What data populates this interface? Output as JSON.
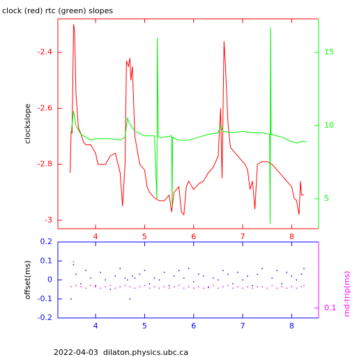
{
  "chart_data": [
    {
      "type": "line",
      "title": "clock (red) rtc (green) slopes",
      "y_label": "clockslope",
      "xlim": [
        3.23,
        8.55
      ],
      "xticks": [
        4,
        5,
        6,
        7,
        8
      ],
      "x_axis_color": "#ff0000",
      "ylim": [
        -3.03,
        -2.28
      ],
      "yticks": [
        -3,
        -2.8,
        -2.6,
        -2.4
      ],
      "y_axis_color": "#ff0000",
      "y2lim": [
        2.95,
        17.29
      ],
      "y2ticks": [
        5,
        10,
        15
      ],
      "y2_axis_color": "#00ff00",
      "series": [
        {
          "color": "#ff0000",
          "x": [
            3.48,
            3.5,
            3.52,
            3.55,
            3.57,
            3.6,
            3.65,
            3.7,
            3.75,
            3.8,
            3.9,
            4.0,
            4.05,
            4.2,
            4.3,
            4.4,
            4.5,
            4.55,
            4.6,
            4.63,
            4.67,
            4.7,
            4.72,
            4.75,
            4.8,
            4.9,
            5.0,
            5.05,
            5.1,
            5.2,
            5.3,
            5.4,
            5.5,
            5.55,
            5.6,
            5.7,
            5.75,
            5.8,
            5.85,
            5.9,
            6.0,
            6.1,
            6.2,
            6.3,
            6.4,
            6.5,
            6.55,
            6.58,
            6.62,
            6.65,
            6.7,
            6.75,
            6.8,
            6.9,
            7.0,
            7.05,
            7.1,
            7.15,
            7.2,
            7.25,
            7.3,
            7.4,
            7.5,
            7.6,
            7.7,
            7.8,
            7.9,
            8.0,
            8.05,
            8.1,
            8.15,
            8.18,
            8.2,
            8.25
          ],
          "values": [
            -2.83,
            -2.68,
            -2.69,
            -2.3,
            -2.32,
            -2.55,
            -2.67,
            -2.69,
            -2.72,
            -2.73,
            -2.73,
            -2.76,
            -2.8,
            -2.8,
            -2.77,
            -2.76,
            -2.83,
            -2.95,
            -2.8,
            -2.43,
            -2.45,
            -2.42,
            -2.5,
            -2.45,
            -2.7,
            -2.8,
            -2.82,
            -2.88,
            -2.9,
            -2.92,
            -2.93,
            -2.93,
            -2.91,
            -2.97,
            -2.9,
            -2.88,
            -2.97,
            -2.98,
            -2.88,
            -2.86,
            -2.89,
            -2.87,
            -2.86,
            -2.83,
            -2.81,
            -2.77,
            -2.6,
            -2.85,
            -2.36,
            -2.45,
            -2.65,
            -2.74,
            -2.75,
            -2.77,
            -2.79,
            -2.8,
            -2.82,
            -2.89,
            -2.86,
            -2.96,
            -2.8,
            -2.79,
            -2.79,
            -2.8,
            -2.82,
            -2.84,
            -2.86,
            -2.88,
            -2.92,
            -2.93,
            -2.98,
            -2.86,
            -2.91,
            -2.91
          ]
        },
        {
          "color": "#00ee00",
          "axis": "y2",
          "x": [
            3.5,
            3.55,
            3.6,
            3.7,
            3.8,
            3.9,
            4.0,
            4.3,
            4.5,
            4.6,
            4.65,
            4.7,
            4.8,
            5.0,
            5.2,
            5.25,
            5.26,
            5.28,
            5.4,
            5.55,
            5.56,
            5.57,
            5.7,
            5.9,
            6.1,
            6.3,
            6.5,
            6.55,
            6.6,
            6.8,
            7.0,
            7.2,
            7.4,
            7.55,
            7.56,
            7.57,
            7.58,
            7.8,
            8.0,
            8.1,
            8.2,
            8.3
          ],
          "values": [
            9.5,
            11,
            10,
            9.4,
            9.2,
            9.0,
            9.1,
            9.1,
            9.0,
            9.2,
            10.5,
            10.1,
            9.6,
            9.3,
            9.3,
            5,
            16,
            9.2,
            9.2,
            9.3,
            4.5,
            9.2,
            9.0,
            9.0,
            9.2,
            9.4,
            9.5,
            10,
            9.6,
            9.5,
            9.6,
            9.5,
            9.5,
            9.4,
            3.3,
            16.7,
            9.4,
            9.2,
            8.9,
            8.8,
            8.9,
            8.9
          ]
        }
      ]
    },
    {
      "type": "scatter",
      "y_label": "offset(ms)",
      "y2_label": "rnd-trip(ms)",
      "xlim": [
        3.23,
        8.55
      ],
      "xticks": [
        4,
        5,
        6,
        7,
        8
      ],
      "x_axis_color": "#0000ff",
      "ylim": [
        -0.2,
        0.2
      ],
      "yticks": [
        -0.2,
        -0.1,
        0,
        0.1,
        0.2
      ],
      "y_axis_color": "#0000ff",
      "y2lim": [
        0.071,
        1
      ],
      "y2ticks": [
        0.1
      ],
      "y2scale": "log",
      "y2_axis_color": "#ff00ff",
      "series": [
        {
          "color": "#0000ff",
          "x": [
            3.5,
            3.55,
            3.6,
            3.7,
            3.8,
            3.9,
            4.0,
            4.1,
            4.2,
            4.3,
            4.4,
            4.5,
            4.6,
            4.65,
            4.7,
            4.75,
            4.8,
            4.9,
            5.0,
            5.1,
            5.2,
            5.3,
            5.4,
            5.5,
            5.6,
            5.7,
            5.8,
            5.9,
            6.0,
            6.1,
            6.2,
            6.3,
            6.4,
            6.5,
            6.6,
            6.7,
            6.8,
            6.9,
            7.0,
            7.1,
            7.2,
            7.3,
            7.4,
            7.6,
            7.7,
            7.8,
            7.9,
            8.0,
            8.1,
            8.2,
            8.25
          ],
          "values": [
            -0.1,
            0.08,
            0.03,
            -0.02,
            0.05,
            0.01,
            -0.03,
            0.04,
            0.0,
            -0.05,
            0.02,
            0.06,
            0.01,
            0.0,
            -0.1,
            0.02,
            0.01,
            0.03,
            0.05,
            -0.02,
            0.01,
            0.0,
            0.04,
            -0.03,
            0.02,
            0.05,
            0.01,
            0.06,
            -0.01,
            0.03,
            0.02,
            -0.04,
            0.01,
            0.0,
            0.05,
            0.03,
            -0.02,
            0.04,
            0.0,
            0.02,
            -0.03,
            0.03,
            0.06,
            0.01,
            0.05,
            -0.02,
            0.04,
            0.02,
            0.0,
            0.03,
            0.06
          ]
        },
        {
          "color": "#ff00ff",
          "axis": "y2",
          "x": [
            3.5,
            3.55,
            3.6,
            3.7,
            3.8,
            3.9,
            4.0,
            4.1,
            4.2,
            4.3,
            4.4,
            4.5,
            4.6,
            4.7,
            4.8,
            4.9,
            5.0,
            5.1,
            5.2,
            5.3,
            5.4,
            5.5,
            5.6,
            5.7,
            5.8,
            5.9,
            6.0,
            6.1,
            6.2,
            6.3,
            6.4,
            6.5,
            6.6,
            6.7,
            6.8,
            6.9,
            7.0,
            7.1,
            7.2,
            7.3,
            7.4,
            7.5,
            7.6,
            7.7,
            7.8,
            7.9,
            8.0,
            8.1,
            8.2,
            8.25
          ],
          "values": [
            0.21,
            0.5,
            0.22,
            0.21,
            0.2,
            0.22,
            0.21,
            0.2,
            0.21,
            0.22,
            0.2,
            0.21,
            0.22,
            0.21,
            0.2,
            0.21,
            0.22,
            0.2,
            0.21,
            0.2,
            0.21,
            0.2,
            0.21,
            0.22,
            0.2,
            0.21,
            0.2,
            0.21,
            0.2,
            0.21,
            0.22,
            0.2,
            0.21,
            0.22,
            0.2,
            0.21,
            0.2,
            0.21,
            0.2,
            0.21,
            0.21,
            0.2,
            0.22,
            0.2,
            0.21,
            0.2,
            0.21,
            0.2,
            0.21,
            0.22
          ]
        }
      ]
    }
  ],
  "footer": "2022-04-03  dilaton.physics.ubc.ca"
}
